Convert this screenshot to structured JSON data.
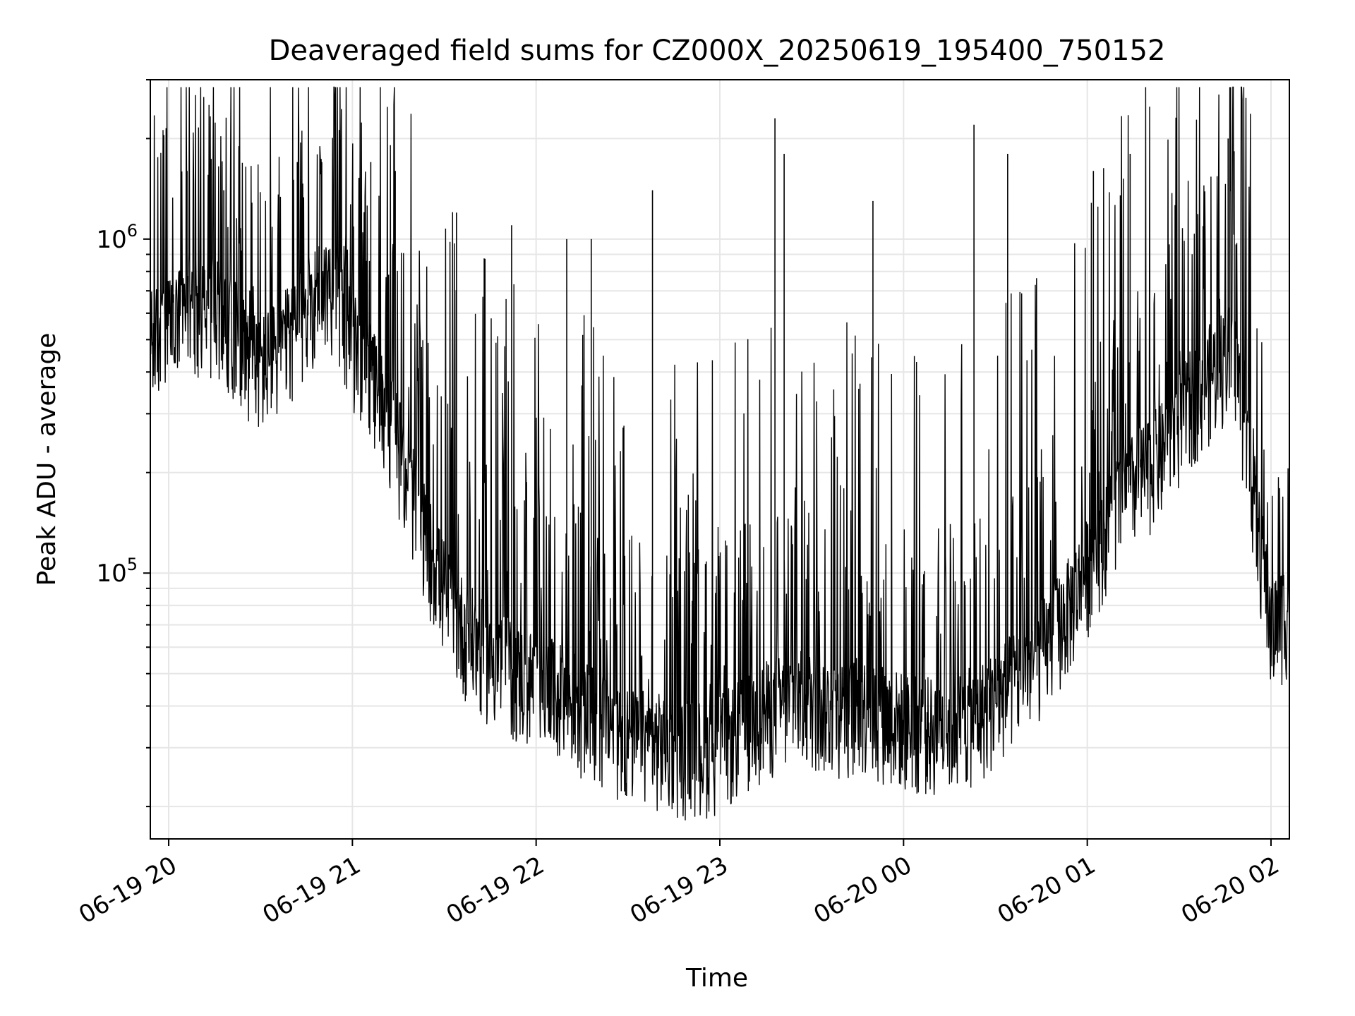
{
  "chart_data": {
    "type": "line",
    "title": "Deaveraged field sums for CZ000X_20250619_195400_750152",
    "xlabel": "Time",
    "ylabel": "Peak ADU - average",
    "y_scale": "log",
    "ylim": [
      16000,
      3000000
    ],
    "xlim": [
      "06-19 19:54",
      "06-20 02:06"
    ],
    "grid": true,
    "line_color": "#000000",
    "grid_color": "#e6e6e6",
    "x_ticks": [
      {
        "t": "06-19 20:00",
        "label": "06-19 20"
      },
      {
        "t": "06-19 21:00",
        "label": "06-19 21"
      },
      {
        "t": "06-19 22:00",
        "label": "06-19 22"
      },
      {
        "t": "06-19 23:00",
        "label": "06-19 23"
      },
      {
        "t": "06-20 00:00",
        "label": "06-20 00"
      },
      {
        "t": "06-20 01:00",
        "label": "06-20 01"
      },
      {
        "t": "06-20 02:00",
        "label": "06-20 02"
      }
    ],
    "y_major_ticks": [
      {
        "value": 100000,
        "base": "10",
        "exp": "5"
      },
      {
        "value": 1000000,
        "base": "10",
        "exp": "6"
      }
    ],
    "series": [
      {
        "x": [
          "06-19 19:54",
          "06-19 20:00",
          "06-19 20:06",
          "06-19 20:12",
          "06-19 20:18",
          "06-19 20:24",
          "06-19 20:30",
          "06-19 20:36",
          "06-19 20:42",
          "06-19 20:48",
          "06-19 20:54",
          "06-19 21:00",
          "06-19 21:06",
          "06-19 21:12",
          "06-19 21:18",
          "06-19 21:24",
          "06-19 21:30",
          "06-19 21:36",
          "06-19 21:42",
          "06-19 21:48",
          "06-19 21:54",
          "06-19 22:00",
          "06-19 22:06",
          "06-19 22:12",
          "06-19 22:18",
          "06-19 22:24",
          "06-19 22:30",
          "06-19 22:36",
          "06-19 22:42",
          "06-19 22:48",
          "06-19 22:54",
          "06-19 23:00",
          "06-19 23:06",
          "06-19 23:12",
          "06-19 23:18",
          "06-19 23:24",
          "06-19 23:30",
          "06-19 23:36",
          "06-19 23:42",
          "06-19 23:48",
          "06-19 23:54",
          "06-20 00:00",
          "06-20 00:06",
          "06-20 00:12",
          "06-20 00:18",
          "06-20 00:24",
          "06-20 00:30",
          "06-20 00:36",
          "06-20 00:42",
          "06-20 00:48",
          "06-20 00:54",
          "06-20 01:00",
          "06-20 01:06",
          "06-20 01:12",
          "06-20 01:18",
          "06-20 01:24",
          "06-20 01:30",
          "06-20 01:36",
          "06-20 01:42",
          "06-20 01:48",
          "06-20 01:54",
          "06-20 02:00",
          "06-20 02:06"
        ],
        "y": [
          500000,
          550000,
          600000,
          650000,
          600000,
          500000,
          420000,
          480000,
          550000,
          700000,
          750000,
          500000,
          400000,
          300000,
          200000,
          130000,
          90000,
          70000,
          60000,
          55000,
          50000,
          48000,
          45000,
          42000,
          38000,
          35000,
          33000,
          32000,
          31000,
          30000,
          30000,
          31000,
          34000,
          38000,
          40000,
          42000,
          42000,
          40000,
          40000,
          40000,
          38000,
          36000,
          35000,
          35000,
          36000,
          38000,
          42000,
          48000,
          55000,
          65000,
          80000,
          105000,
          140000,
          175000,
          200000,
          230000,
          290000,
          360000,
          420000,
          480000,
          180000,
          70000,
          80000
        ]
      }
    ],
    "peaks": {
      "x": [
        "06-19 20:06",
        "06-19 20:18",
        "06-19 20:42",
        "06-19 20:50",
        "06-19 21:06",
        "06-19 21:14",
        "06-19 21:34",
        "06-19 21:52",
        "06-19 22:10",
        "06-19 22:18",
        "06-19 22:38",
        "06-19 23:18",
        "06-19 23:21",
        "06-19 23:50",
        "06-20 00:23",
        "06-20 00:34",
        "06-20 01:02",
        "06-20 01:14",
        "06-20 01:46"
      ],
      "y": [
        1600000,
        1400000,
        1700000,
        1700000,
        1700000,
        1600000,
        1200000,
        1100000,
        1000000,
        1000000,
        1400000,
        2300000,
        1800000,
        1300000,
        2200000,
        1800000,
        1600000,
        1800000,
        2000000
      ]
    }
  }
}
